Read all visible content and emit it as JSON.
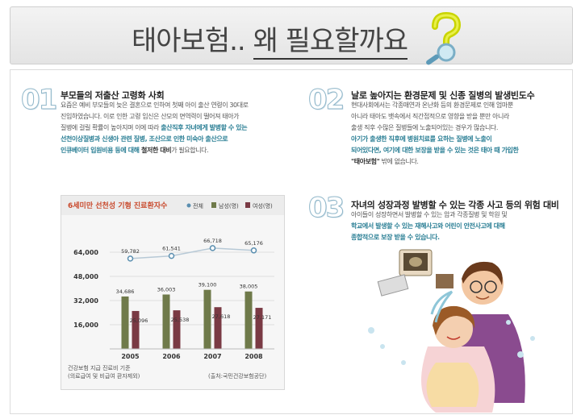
{
  "header": {
    "title_part1": "태아보험..",
    "title_part2": "왜 필요할까요"
  },
  "sections": [
    {
      "number": "01",
      "heading": "부모들의 저출산 고령화 사회",
      "lines": [
        [
          "요즘은 예비 부모들의 늦은 결혼으로 인하여 첫째 아이 출산 연령이 30대로"
        ],
        [
          "진입하였습니다. 이로 인한 고령 임신은 산모의 면역력이 떨어져 태아가"
        ],
        [
          "질병에 걸릴 확률이 높아지며 이에 따라 ",
          {
            "h": "출산직후 자녀에게 발병할 수 있는"
          }
        ],
        [
          {
            "h": "선천이상질병과 신생아 관련 질병, 조산으로 인한 미숙아 출산으로"
          }
        ],
        [
          {
            "h": "인큐베이터 입원비용 등에 대해 "
          },
          {
            "b": "철저한 대비"
          },
          "가 필요합니다."
        ]
      ]
    },
    {
      "number": "02",
      "heading": "날로 높아지는 환경문제 및 신종 질병의 발생빈도수",
      "lines": [
        [
          "현대사회에서는 각종매연과 온난화 등의 환경문제로 인해 엄마뿐"
        ],
        [
          "아니라 태아도 뱃속에서 직간접적으로 영향을 받을 뿐만 아니라"
        ],
        [
          "출생 직후 수많은 질병들에 노출되어있는 경우가 많습니다."
        ],
        [
          {
            "h": "아기가 출생한 직후에 병원치료를 요하는 질병에 노출이"
          }
        ],
        [
          {
            "h": "되어있다면, 여기에 대한 보장을 받을 수 있는 것은 태아 때 가입한"
          }
        ],
        [
          {
            "b": "\"태아보험\""
          },
          " 밖에 없습니다."
        ]
      ]
    },
    {
      "number": "03",
      "heading": "자녀의 성장과정 발병할 수 있는 각종 사고 등의 위험 대비",
      "lines": [
        [
          "아이들이 성장하면서 발병할 수 있는 암과 각종질병 및 학원 및"
        ],
        [
          {
            "h": "학교에서 발생할 수 있는 재해사고와 어린이 안전사고에 대해"
          }
        ],
        [
          {
            "h": "종합적으로 보장 받을 수 있습니다."
          }
        ]
      ]
    }
  ],
  "chart_data": {
    "type": "bar",
    "title": "6세미만 선천성 기형 진료환자수",
    "categories": [
      "2005",
      "2006",
      "2007",
      "2008"
    ],
    "series": [
      {
        "name": "전체",
        "kind": "line",
        "color": "#5b8fb0",
        "values": [
          59782,
          61541,
          66718,
          65176
        ]
      },
      {
        "name": "남성(명)",
        "kind": "bar",
        "color": "#6f7a4a",
        "values": [
          34686,
          36003,
          39100,
          38005
        ]
      },
      {
        "name": "여성(명)",
        "kind": "bar",
        "color": "#7a3a44",
        "values": [
          25096,
          25538,
          27618,
          27171
        ]
      }
    ],
    "line_labels": [
      "59,782",
      "61,541",
      "66,718",
      "65,176"
    ],
    "male_labels": [
      "34,686",
      "36,003",
      "39,100",
      "38,005"
    ],
    "female_labels": [
      "25,096",
      "25,538",
      "27,618",
      "27,171"
    ],
    "yticks": [
      "64,000",
      "48,000",
      "32,000",
      "16,000"
    ],
    "ytick_values": [
      64000,
      48000,
      32000,
      16000
    ],
    "note_line1": "건강보험 지급 진료비 기준",
    "note_line2": "(의료급여 및 비급여 환자제외)",
    "source": "(출처:국민건강보험공단)",
    "colors": {
      "male": "#6f7a4a",
      "female": "#7a3a44",
      "total": "#5b8fb0"
    }
  }
}
